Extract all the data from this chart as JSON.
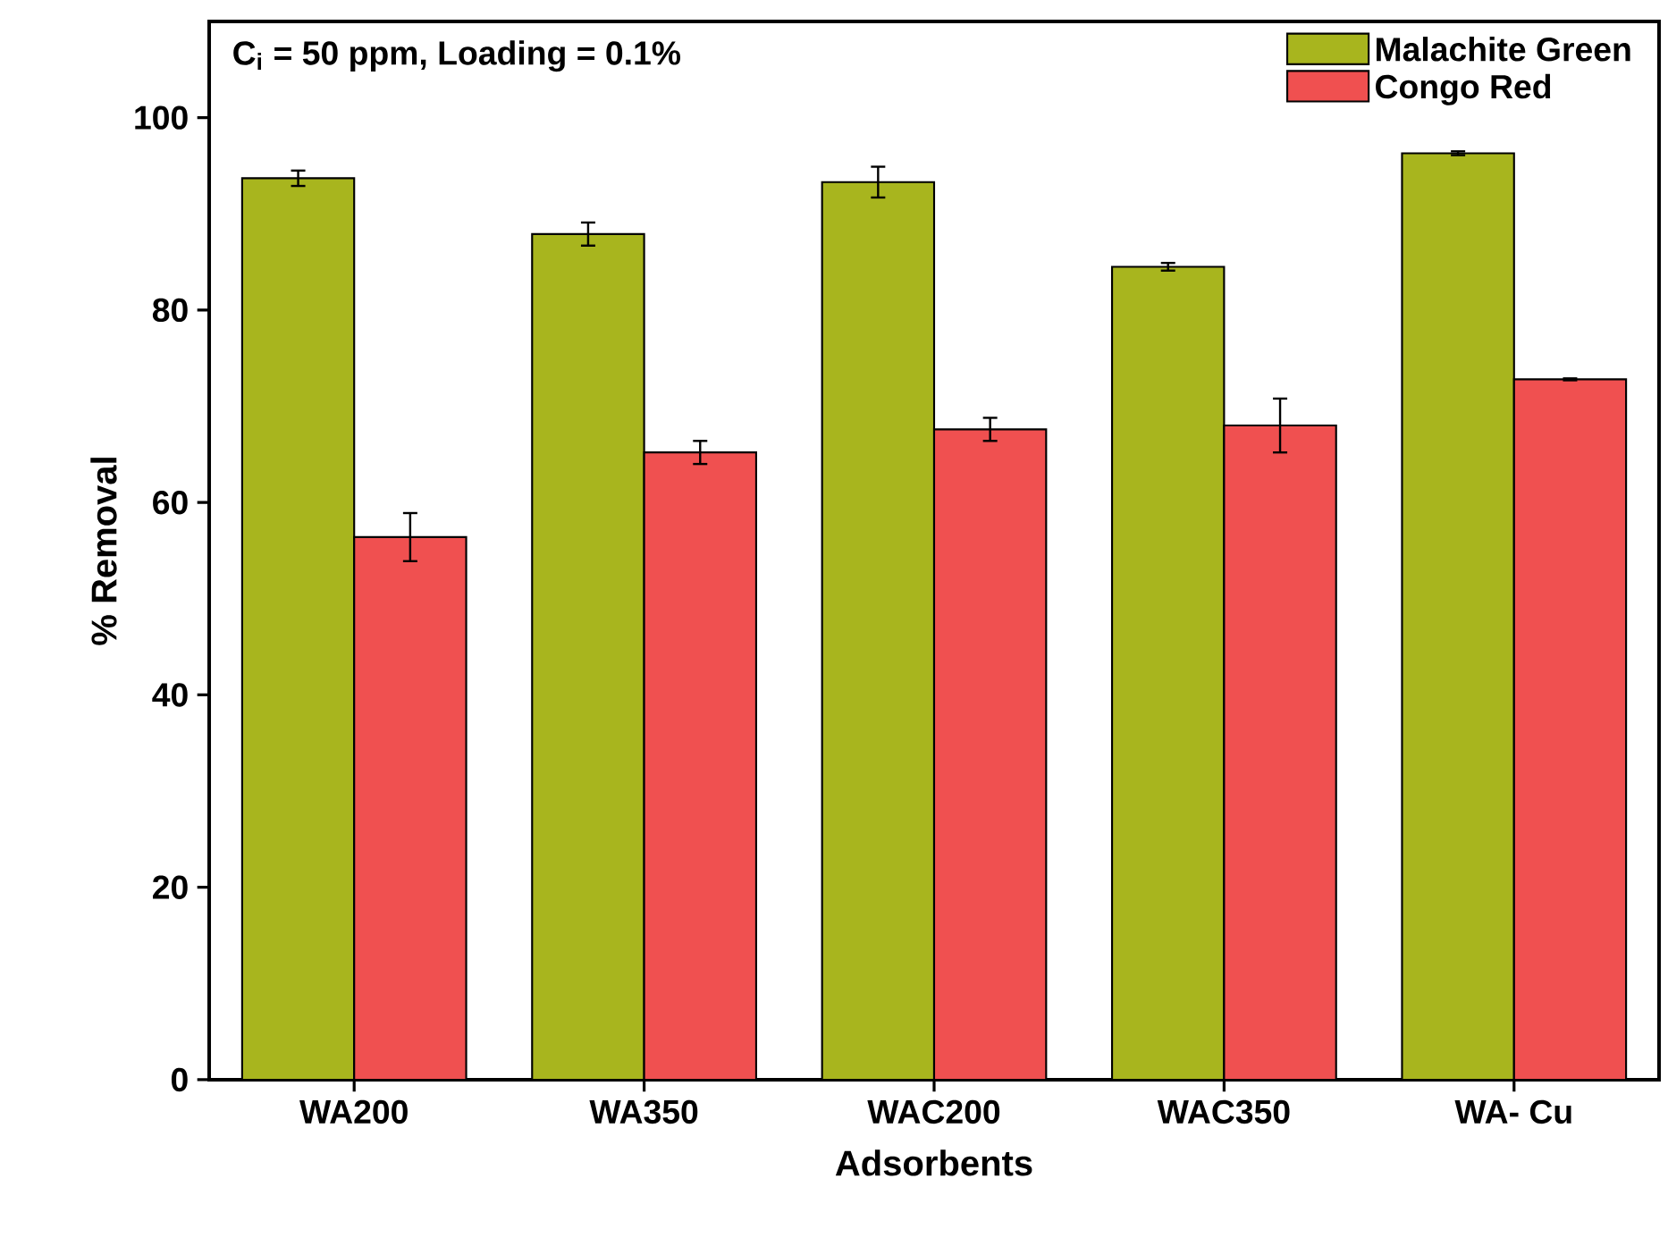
{
  "chart_data": {
    "type": "bar",
    "xlabel": "Adsorbents",
    "ylabel": "% Removal",
    "categories": [
      "WA200",
      "WA350",
      "WAC200",
      "WAC350",
      "WA- Cu"
    ],
    "series": [
      {
        "name": "Malachite Green",
        "color": "#a8b51e",
        "values": [
          93.7,
          87.9,
          93.3,
          84.5,
          96.3
        ],
        "errors": [
          0.8,
          1.2,
          1.6,
          0.4,
          0.2
        ]
      },
      {
        "name": "Congo Red",
        "color": "#f05050",
        "values": [
          56.4,
          65.2,
          67.6,
          68.0,
          72.8
        ],
        "errors": [
          2.5,
          1.2,
          1.2,
          2.8,
          0.1
        ]
      }
    ],
    "ylim": [
      0,
      110
    ],
    "yticks": [
      0,
      20,
      40,
      60,
      80,
      100
    ],
    "annotations": [
      "C$_{i}$ = 50 ppm, Loading = 0.1%"
    ],
    "legend": "top right",
    "grid": false
  }
}
